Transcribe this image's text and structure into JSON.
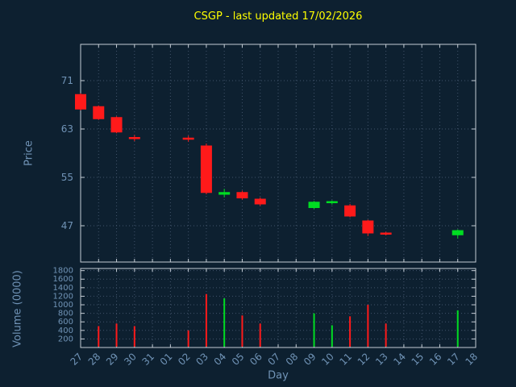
{
  "chart_data": {
    "type": "candlestick",
    "title": "CSGP - last updated 17/02/2026",
    "xlabel": "Day",
    "price_axis": {
      "label": "Price",
      "ticks": [
        71,
        63,
        55,
        47
      ],
      "range": [
        41,
        77
      ]
    },
    "volume_axis": {
      "label": "Volume (0000)",
      "ticks": [
        1800,
        1600,
        1400,
        1200,
        1000,
        800,
        600,
        400,
        200
      ],
      "range": [
        0,
        1850
      ]
    },
    "x_ticks": [
      "27",
      "28",
      "29",
      "30",
      "31",
      "01",
      "02",
      "03",
      "04",
      "05",
      "06",
      "07",
      "08",
      "09",
      "10",
      "11",
      "12",
      "13",
      "14",
      "15",
      "16",
      "17",
      "18"
    ],
    "legend": "none",
    "grid": "dotted",
    "candles": [
      {
        "day": "27",
        "open": 68.7,
        "high": 68.9,
        "low": 66.1,
        "close": 66.3,
        "volume": 0
      },
      {
        "day": "28",
        "open": 66.7,
        "high": 66.9,
        "low": 64.5,
        "close": 64.7,
        "volume": 500
      },
      {
        "day": "29",
        "open": 64.9,
        "high": 65.1,
        "low": 62.3,
        "close": 62.5,
        "volume": 560
      },
      {
        "day": "30",
        "open": 61.6,
        "high": 62.0,
        "low": 61.0,
        "close": 61.4,
        "volume": 500
      },
      {
        "day": "02",
        "open": 61.5,
        "high": 61.9,
        "low": 60.9,
        "close": 61.3,
        "volume": 400
      },
      {
        "day": "03",
        "open": 60.2,
        "high": 60.6,
        "low": 52.2,
        "close": 52.5,
        "volume": 1250
      },
      {
        "day": "04",
        "open": 52.2,
        "high": 53.1,
        "low": 51.7,
        "close": 52.5,
        "volume": 1150
      },
      {
        "day": "05",
        "open": 52.5,
        "high": 52.8,
        "low": 51.3,
        "close": 51.6,
        "volume": 750
      },
      {
        "day": "06",
        "open": 51.4,
        "high": 51.7,
        "low": 50.3,
        "close": 50.6,
        "volume": 560
      },
      {
        "day": "09",
        "open": 50.0,
        "high": 51.1,
        "low": 49.8,
        "close": 50.9,
        "volume": 800
      },
      {
        "day": "10",
        "open": 50.8,
        "high": 51.2,
        "low": 50.5,
        "close": 51.0,
        "volume": 520
      },
      {
        "day": "11",
        "open": 50.3,
        "high": 50.6,
        "low": 48.4,
        "close": 48.6,
        "volume": 730
      },
      {
        "day": "12",
        "open": 47.8,
        "high": 48.0,
        "low": 45.3,
        "close": 45.8,
        "volume": 1000
      },
      {
        "day": "13",
        "open": 45.8,
        "high": 46.0,
        "low": 45.4,
        "close": 45.6,
        "volume": 560
      },
      {
        "day": "17",
        "open": 45.5,
        "high": 46.4,
        "low": 44.9,
        "close": 46.2,
        "volume": 870
      }
    ],
    "colors": {
      "up": "#00dd22",
      "down": "#ff1a1a",
      "title": "#ffff00",
      "axis_text": "#7093b6",
      "grid": "#41536a",
      "border": "#c4ccd4",
      "background": "#0d2030"
    }
  }
}
